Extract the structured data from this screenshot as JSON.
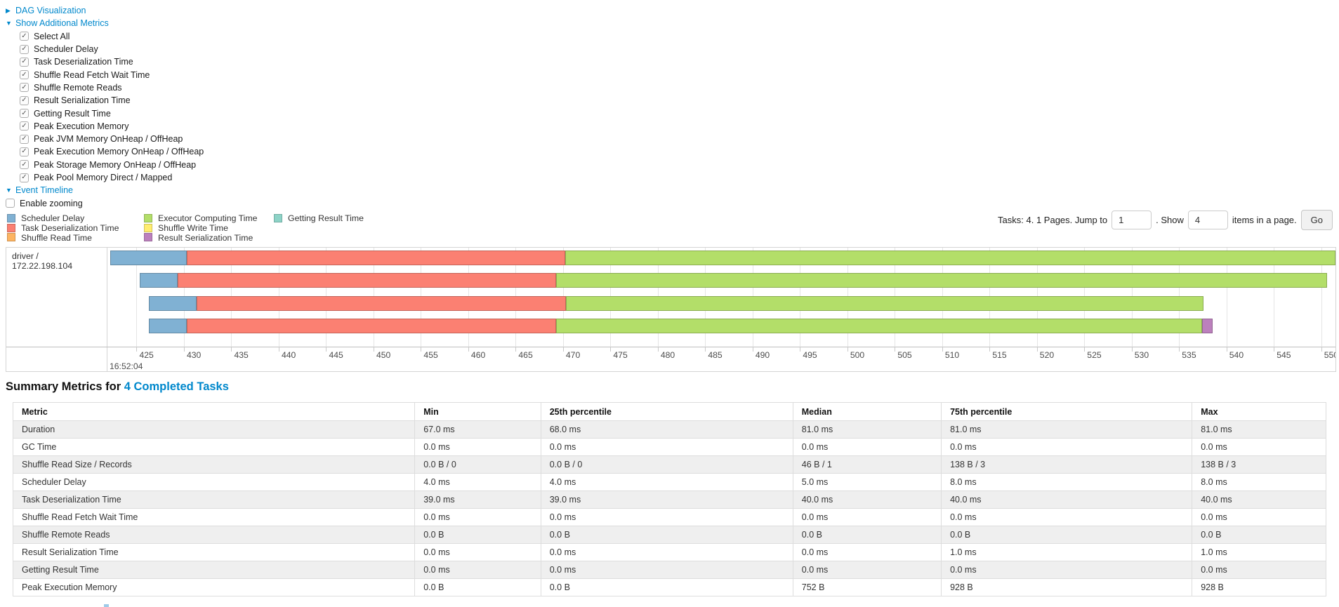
{
  "colors": {
    "link": "#0088cc",
    "scheduler_delay": "#80B1D3",
    "task_deserialization": "#FB8072",
    "shuffle_read": "#FDB462",
    "executor_computing": "#B3DE69",
    "shuffle_write": "#FFED6F",
    "result_serialization": "#BC80BD",
    "getting_result": "#8DD3C7"
  },
  "nav": {
    "dag_toggle": {
      "label": "DAG Visualization",
      "state": "collapsed"
    },
    "metrics_toggle": {
      "label": "Show Additional Metrics",
      "state": "expanded"
    },
    "metric_checkboxes": [
      {
        "label": "Select All",
        "checked": true
      },
      {
        "label": "Scheduler Delay",
        "checked": true
      },
      {
        "label": "Task Deserialization Time",
        "checked": true
      },
      {
        "label": "Shuffle Read Fetch Wait Time",
        "checked": true
      },
      {
        "label": "Shuffle Remote Reads",
        "checked": true
      },
      {
        "label": "Result Serialization Time",
        "checked": true
      },
      {
        "label": "Getting Result Time",
        "checked": true
      },
      {
        "label": "Peak Execution Memory",
        "checked": true
      },
      {
        "label": "Peak JVM Memory OnHeap / OffHeap",
        "checked": true
      },
      {
        "label": "Peak Execution Memory OnHeap / OffHeap",
        "checked": true
      },
      {
        "label": "Peak Storage Memory OnHeap / OffHeap",
        "checked": true
      },
      {
        "label": "Peak Pool Memory Direct / Mapped",
        "checked": true
      }
    ],
    "timeline_toggle": {
      "label": "Event Timeline",
      "state": "expanded"
    },
    "zoom_checkbox": {
      "label": "Enable zooming",
      "checked": false
    }
  },
  "legend": {
    "columns": [
      [
        {
          "label": "Scheduler Delay",
          "color_key": "scheduler_delay"
        },
        {
          "label": "Task Deserialization Time",
          "color_key": "task_deserialization"
        },
        {
          "label": "Shuffle Read Time",
          "color_key": "shuffle_read"
        }
      ],
      [
        {
          "label": "Executor Computing Time",
          "color_key": "executor_computing"
        },
        {
          "label": "Shuffle Write Time",
          "color_key": "shuffle_write"
        },
        {
          "label": "Result Serialization Time",
          "color_key": "result_serialization"
        }
      ],
      [
        {
          "label": "Getting Result Time",
          "color_key": "getting_result"
        }
      ]
    ]
  },
  "pagination": {
    "tasks_text": "Tasks: 4. 1 Pages. Jump to",
    "jump_value": "1",
    "show_text": ". Show",
    "show_value": "4",
    "items_text": "items in a page.",
    "go_label": "Go"
  },
  "chart_data": {
    "type": "timeline",
    "group_label": "driver / 172.22.198.104",
    "time_origin_label": "16:52:04",
    "axis": {
      "min": 422,
      "max": 551.5,
      "tick_step": 5,
      "ticks": [
        425,
        430,
        435,
        440,
        445,
        450,
        455,
        460,
        465,
        470,
        475,
        480,
        485,
        490,
        495,
        500,
        505,
        510,
        515,
        520,
        525,
        530,
        535,
        540,
        545,
        550
      ],
      "unit": "ms (within second 16:52:04)"
    },
    "legend_series": [
      "Scheduler Delay",
      "Task Deserialization Time",
      "Shuffle Read Time",
      "Executor Computing Time",
      "Shuffle Write Time",
      "Result Serialization Time",
      "Getting Result Time"
    ],
    "tasks": [
      {
        "segments": [
          {
            "series": "scheduler_delay",
            "from": 422.2,
            "to": 430.3
          },
          {
            "series": "task_deserialization",
            "from": 430.3,
            "to": 470.2
          },
          {
            "series": "executor_computing",
            "from": 470.2,
            "to": 551.5
          }
        ]
      },
      {
        "segments": [
          {
            "series": "scheduler_delay",
            "from": 425.3,
            "to": 429.3
          },
          {
            "series": "task_deserialization",
            "from": 429.3,
            "to": 469.3
          },
          {
            "series": "executor_computing",
            "from": 469.3,
            "to": 550.6
          }
        ]
      },
      {
        "segments": [
          {
            "series": "scheduler_delay",
            "from": 426.3,
            "to": 431.3
          },
          {
            "series": "task_deserialization",
            "from": 431.3,
            "to": 470.3
          },
          {
            "series": "executor_computing",
            "from": 470.3,
            "to": 537.6
          }
        ]
      },
      {
        "segments": [
          {
            "series": "scheduler_delay",
            "from": 426.3,
            "to": 430.3
          },
          {
            "series": "task_deserialization",
            "from": 430.3,
            "to": 469.3
          },
          {
            "series": "executor_computing",
            "from": 469.3,
            "to": 537.4
          },
          {
            "series": "result_serialization",
            "from": 537.4,
            "to": 538.5
          }
        ]
      }
    ]
  },
  "summary": {
    "title_prefix": "Summary Metrics for",
    "title_link": "4 Completed Tasks",
    "table": {
      "headers": [
        "Metric",
        "Min",
        "25th percentile",
        "Median",
        "75th percentile",
        "Max"
      ],
      "rows": [
        [
          "Duration",
          "67.0 ms",
          "68.0 ms",
          "81.0 ms",
          "81.0 ms",
          "81.0 ms"
        ],
        [
          "GC Time",
          "0.0 ms",
          "0.0 ms",
          "0.0 ms",
          "0.0 ms",
          "0.0 ms"
        ],
        [
          "Shuffle Read Size / Records",
          "0.0 B / 0",
          "0.0 B / 0",
          "46 B / 1",
          "138 B / 3",
          "138 B / 3"
        ],
        [
          "Scheduler Delay",
          "4.0 ms",
          "4.0 ms",
          "5.0 ms",
          "8.0 ms",
          "8.0 ms"
        ],
        [
          "Task Deserialization Time",
          "39.0 ms",
          "39.0 ms",
          "40.0 ms",
          "40.0 ms",
          "40.0 ms"
        ],
        [
          "Shuffle Read Fetch Wait Time",
          "0.0 ms",
          "0.0 ms",
          "0.0 ms",
          "0.0 ms",
          "0.0 ms"
        ],
        [
          "Shuffle Remote Reads",
          "0.0 B",
          "0.0 B",
          "0.0 B",
          "0.0 B",
          "0.0 B"
        ],
        [
          "Result Serialization Time",
          "0.0 ms",
          "0.0 ms",
          "0.0 ms",
          "1.0 ms",
          "1.0 ms"
        ],
        [
          "Getting Result Time",
          "0.0 ms",
          "0.0 ms",
          "0.0 ms",
          "0.0 ms",
          "0.0 ms"
        ],
        [
          "Peak Execution Memory",
          "0.0 B",
          "0.0 B",
          "752 B",
          "928 B",
          "928 B"
        ]
      ]
    }
  }
}
